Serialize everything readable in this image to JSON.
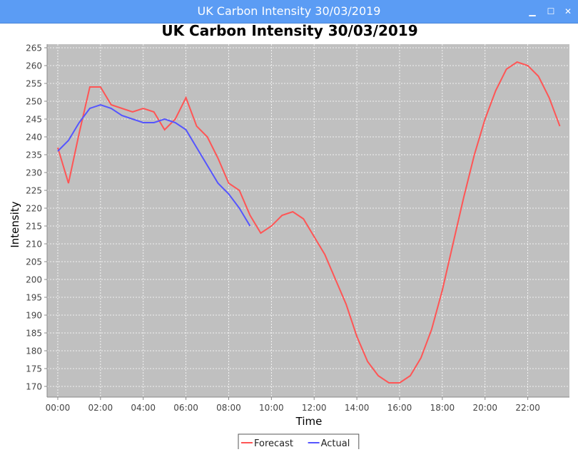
{
  "window": {
    "title": "UK Carbon Intensity 30/03/2019",
    "minimize_glyph": "▁",
    "maximize_glyph": "☐",
    "close_glyph": "✕"
  },
  "chart_data": {
    "type": "line",
    "title": "UK Carbon Intensity 30/03/2019",
    "xlabel": "Time",
    "ylabel": "Intensity",
    "ylim": [
      167,
      266
    ],
    "xlim": [
      -0.5,
      23.95
    ],
    "yticks": [
      170,
      175,
      180,
      185,
      190,
      195,
      200,
      205,
      210,
      215,
      220,
      225,
      230,
      235,
      240,
      245,
      250,
      255,
      260,
      265
    ],
    "xticks": [
      {
        "value": 0,
        "label": "00:00"
      },
      {
        "value": 2,
        "label": "02:00"
      },
      {
        "value": 4,
        "label": "04:00"
      },
      {
        "value": 6,
        "label": "06:00"
      },
      {
        "value": 8,
        "label": "08:00"
      },
      {
        "value": 10,
        "label": "10:00"
      },
      {
        "value": 12,
        "label": "12:00"
      },
      {
        "value": 14,
        "label": "14:00"
      },
      {
        "value": 16,
        "label": "16:00"
      },
      {
        "value": 18,
        "label": "18:00"
      },
      {
        "value": 20,
        "label": "20:00"
      },
      {
        "value": 22,
        "label": "22:00"
      }
    ],
    "grid": true,
    "background": "#c0c0c0",
    "legend_position": "bottom-center",
    "series": [
      {
        "name": "Forecast",
        "color": "#ff5555",
        "x": [
          0,
          0.5,
          1,
          1.5,
          2,
          2.5,
          3,
          3.5,
          4,
          4.5,
          5,
          5.5,
          6,
          6.5,
          7,
          7.5,
          8,
          8.5,
          9,
          9.5,
          10,
          10.5,
          11,
          11.5,
          12,
          12.5,
          13,
          13.5,
          14,
          14.5,
          15,
          15.5,
          16,
          16.5,
          17,
          17.5,
          18,
          18.5,
          19,
          19.5,
          20,
          20.5,
          21,
          21.5,
          22,
          22.5,
          23,
          23.5
        ],
        "values": [
          237,
          227,
          241,
          254,
          254,
          249,
          248,
          247,
          248,
          247,
          242,
          245,
          251,
          243,
          240,
          234,
          227,
          225,
          218,
          213,
          215,
          218,
          219,
          217,
          212,
          207,
          200,
          193,
          184,
          177,
          173,
          171,
          171,
          173,
          178,
          186,
          197,
          210,
          223,
          235,
          245,
          253,
          259,
          261,
          260,
          257,
          251,
          243
        ]
      },
      {
        "name": "Actual",
        "color": "#5555ff",
        "x": [
          0,
          0.5,
          1,
          1.5,
          2,
          2.5,
          3,
          3.5,
          4,
          4.5,
          5,
          5.5,
          6,
          6.5,
          7,
          7.5,
          8,
          8.5,
          9
        ],
        "values": [
          236,
          239,
          244,
          248,
          249,
          248,
          246,
          245,
          244,
          244,
          245,
          244,
          242,
          237,
          232,
          227,
          224,
          220,
          215
        ]
      }
    ]
  }
}
